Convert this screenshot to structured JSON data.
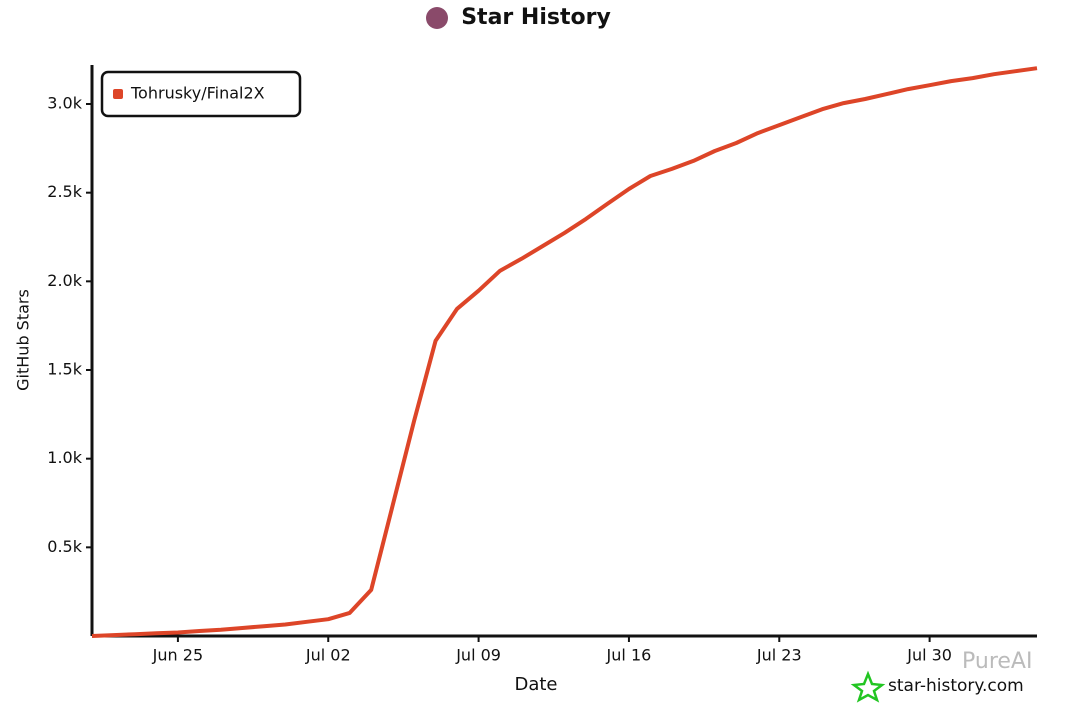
{
  "chart_data": {
    "type": "line",
    "title": "Star History",
    "x_label": "Date",
    "y_label": "GitHub Stars",
    "x": [
      "Jun 21",
      "Jun 22",
      "Jun 23",
      "Jun 24",
      "Jun 25",
      "Jun 26",
      "Jun 27",
      "Jun 28",
      "Jun 29",
      "Jun 30",
      "Jul 01",
      "Jul 02",
      "Jul 03",
      "Jul 04",
      "Jul 05",
      "Jul 06",
      "Jul 07",
      "Jul 08",
      "Jul 09",
      "Jul 10",
      "Jul 11",
      "Jul 12",
      "Jul 13",
      "Jul 14",
      "Jul 15",
      "Jul 16",
      "Jul 17",
      "Jul 18",
      "Jul 19",
      "Jul 20",
      "Jul 21",
      "Jul 22",
      "Jul 23",
      "Jul 24",
      "Jul 25",
      "Jul 26",
      "Jul 27",
      "Jul 28",
      "Jul 29",
      "Jul 30",
      "Jul 31",
      "Aug 01",
      "Aug 02",
      "Aug 03",
      "Aug 04"
    ],
    "series": [
      {
        "name": "Tohrusky/Final2X",
        "color": "#dd4528",
        "values": [
          0,
          5,
          10,
          15,
          20,
          28,
          35,
          45,
          55,
          65,
          80,
          95,
          130,
          260,
          737,
          1215,
          1665,
          1845,
          1947,
          2060,
          2127,
          2200,
          2273,
          2352,
          2437,
          2521,
          2594,
          2634,
          2679,
          2735,
          2780,
          2836,
          2881,
          2926,
          2971,
          3005,
          3028,
          3056,
          3084,
          3106,
          3129,
          3146,
          3168,
          3185,
          3202
        ]
      }
    ],
    "xlim": [
      "Jun 21",
      "Aug 04"
    ],
    "xticks": [
      "Jun 25",
      "Jul 02",
      "Jul 09",
      "Jul 16",
      "Jul 23",
      "Jul 30"
    ],
    "ylim": [
      0,
      3220
    ],
    "yticks": [
      {
        "value": 500,
        "label": "0.5k"
      },
      {
        "value": 1000,
        "label": "1.0k"
      },
      {
        "value": 1500,
        "label": "1.5k"
      },
      {
        "value": 2000,
        "label": "2.0k"
      },
      {
        "value": 2500,
        "label": "2.5k"
      },
      {
        "value": 3000,
        "label": "3.0k"
      }
    ],
    "legend": "top-left",
    "source": "star-history.com",
    "watermark": "PureAI"
  }
}
